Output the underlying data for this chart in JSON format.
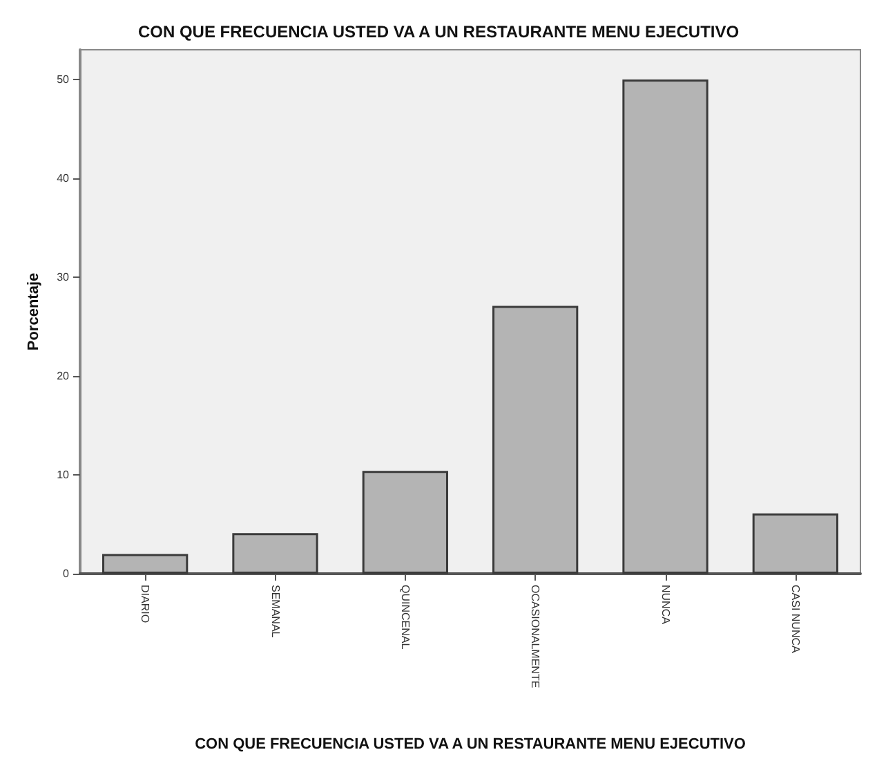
{
  "chart_data": {
    "type": "bar",
    "title": "CON QUE FRECUENCIA USTED VA A UN RESTAURANTE MENU EJECUTIVO",
    "xlabel": "CON QUE FRECUENCIA USTED VA A UN RESTAURANTE MENU EJECUTIVO",
    "ylabel": "Porcentaje",
    "categories": [
      "DIARIO",
      "SEMANAL",
      "QUINCENAL",
      "OCASIONALMENTE",
      "NUNCA",
      "CASI NUNCA"
    ],
    "values": [
      2.0,
      4.1,
      10.4,
      27.1,
      50.0,
      6.1
    ],
    "color": "#b4b4b4",
    "ylim": [
      0,
      53
    ],
    "yticks": [
      0,
      10,
      20,
      30,
      40,
      50
    ],
    "grid": false
  }
}
